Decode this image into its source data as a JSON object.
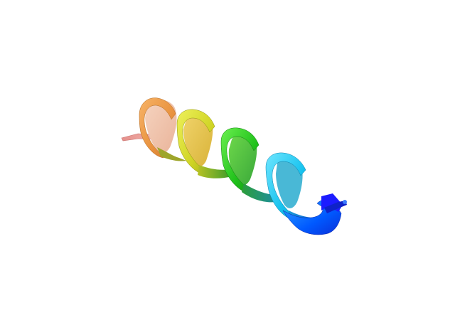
{
  "scene": {
    "background": "#ffffff",
    "subject": "alpha-helix-ribbon",
    "palette": {
      "n_terminus": "#1a1aff",
      "blue": "#0057ff",
      "cyan": "#19c8f0",
      "green": "#2ad41a",
      "yellow": "#d6e020",
      "orange": "#f0a24a",
      "c_terminus_coil": "#e89a96"
    }
  }
}
